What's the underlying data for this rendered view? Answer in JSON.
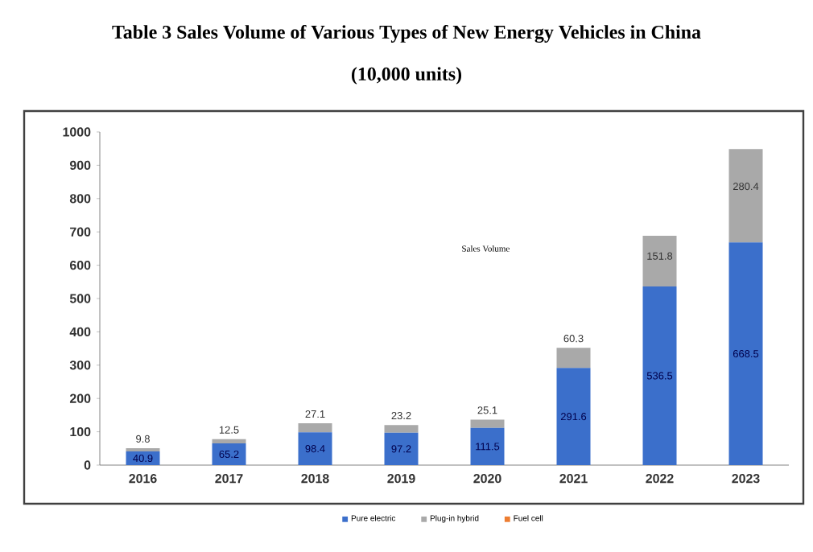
{
  "chart_data": {
    "type": "bar",
    "stacked": true,
    "title": "Table 3 Sales Volume of Various Types of New Energy Vehicles in China",
    "subtitle": "(10,000 units)",
    "categories": [
      "2016",
      "2017",
      "2018",
      "2019",
      "2020",
      "2021",
      "2022",
      "2023"
    ],
    "series": [
      {
        "name": "Pure electric",
        "color": "#3b6fcb",
        "values": [
          40.9,
          65.2,
          98.4,
          97.2,
          111.5,
          291.6,
          536.5,
          668.5
        ],
        "value_labels": [
          "40.9",
          "65.2",
          "98.4",
          "97.2",
          "111.5",
          "291.6",
          "536.5",
          "668.5"
        ]
      },
      {
        "name": "Plug-in hybrid",
        "color": "#a9a9a9",
        "values": [
          9.8,
          12.5,
          27.1,
          23.2,
          25.1,
          60.3,
          151.8,
          280.4
        ],
        "value_labels": [
          "9.8",
          "12.5",
          "27.1",
          "23.2",
          "25.1",
          "60.3",
          "151.8",
          "280.4"
        ]
      },
      {
        "name": "Fuel cell",
        "color": "#ed7d31",
        "values": [
          null,
          null,
          null,
          null,
          null,
          null,
          null,
          null
        ]
      }
    ],
    "annotations": [
      "Sales Volume"
    ],
    "ylim": [
      0,
      1000
    ],
    "yticks": [
      0,
      100,
      200,
      300,
      400,
      500,
      600,
      700,
      800,
      900,
      1000
    ],
    "grid": false,
    "legend": "bottom"
  }
}
